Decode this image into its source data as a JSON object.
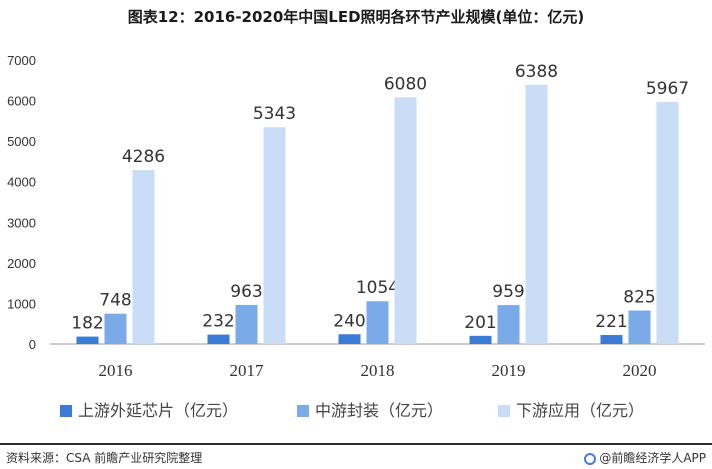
{
  "title": "图表12：2016-2020年中国LED照明各环节产业规模(单位：亿元)",
  "footer": {
    "source": "资料来源：CSA 前瞻产业研究院整理",
    "brand": "@前瞻经济学人APP"
  },
  "chart_data": {
    "type": "bar",
    "categories": [
      "2016",
      "2017",
      "2018",
      "2019",
      "2020"
    ],
    "series": [
      {
        "name": "上游外延芯片（亿元）",
        "color": "#3a7bd5",
        "values": [
          182,
          232,
          240,
          201,
          221
        ]
      },
      {
        "name": "中游封装（亿元）",
        "color": "#7aaae8",
        "values": [
          748,
          963,
          1054,
          959,
          825
        ]
      },
      {
        "name": "下游应用（亿元）",
        "color": "#c9ddf7",
        "values": [
          4286,
          5343,
          6080,
          6388,
          5967
        ]
      }
    ],
    "ylim": [
      0,
      7000
    ],
    "yticks": [
      "0",
      "1000",
      "2000",
      "3000",
      "4000",
      "5000",
      "6000",
      "7000"
    ],
    "grid": false,
    "legend": "bottom"
  }
}
